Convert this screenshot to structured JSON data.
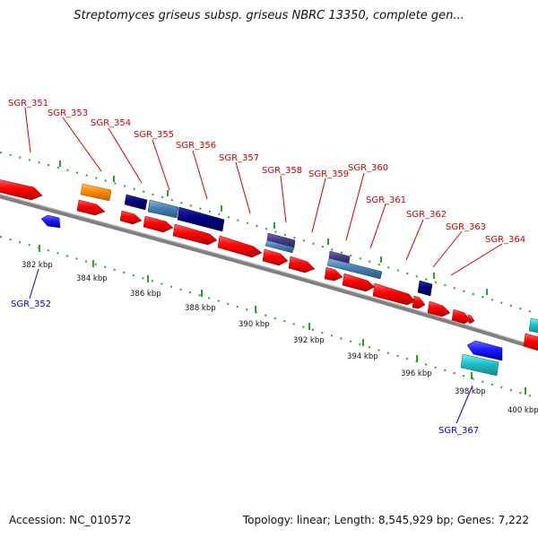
{
  "title": "Streptomyces griseus subsp. griseus NBRC 13350, complete gen...",
  "footer": {
    "accession": "Accession: NC_010572",
    "stats": "Topology: linear; Length: 8,545,929 bp; Genes: 7,222"
  },
  "colors": {
    "plus_gene": "#ff0000",
    "minus_gene": "#1a1aff",
    "orange_gene": "#ff8c00",
    "navy_gene": "#000080",
    "steel_gene": "#4682b4",
    "purple_gene": "#4b3c8c",
    "cyan_gene": "#20c0c8",
    "backbone": "#808080",
    "tick": "#2ca02c",
    "upper_label": "#cc0000",
    "lower_label": "#0000cc"
  },
  "upper_gene_labels": [
    "SGR_351",
    "SGR_353",
    "SGR_354",
    "SGR_355",
    "SGR_356",
    "SGR_357",
    "SGR_358",
    "SGR_359",
    "SGR_360",
    "SGR_361",
    "SGR_362",
    "SGR_363",
    "SGR_364"
  ],
  "lower_gene_labels": [
    "SGR_352",
    "SGR_367"
  ],
  "kbp_labels": [
    "382 kbp",
    "384 kbp",
    "386 kbp",
    "388 kbp",
    "390 kbp",
    "392 kbp",
    "394 kbp",
    "396 kbp",
    "398 kbp",
    "400 kbp"
  ]
}
